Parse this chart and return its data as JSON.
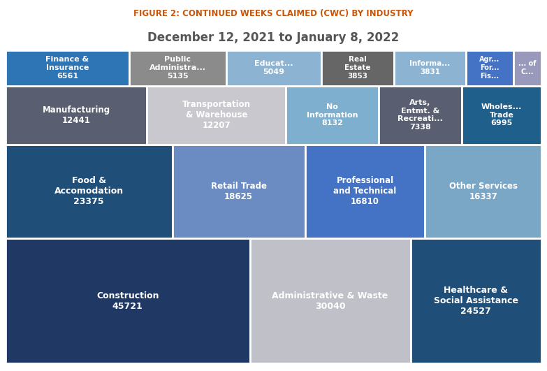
{
  "title_line1": "FIGURE 2: CONTINUED WEEKS CLAIMED (CWC) BY INDUSTRY",
  "title_line2": "December 12, 2021 to January 8, 2022",
  "title_line1_color": "#C8560A",
  "title_line2_color": "#555555",
  "labels": [
    "Construction\n45721",
    "Administrative & Waste\n30040",
    "Healthcare &\nSocial Assistance\n24527",
    "Food &\nAccomodation\n23375",
    "Retail Trade\n18625",
    "Professional\nand Technical\n16810",
    "Other Services\n16337",
    "Manufacturing\n12441",
    "Transportation\n& Warehouse\n12207",
    "No\nInformation\n8132",
    "Arts,\nEntmt. &\nRecreati...\n7338",
    "Wholes...\nTrade\n6995",
    "Finance &\nInsurance\n6561",
    "Public\nAdministra...\n5135",
    "Educat...\n5049",
    "Real\nEstate\n3853",
    "Informa...\n3831",
    "Agr...\nFor...\nFis...",
    "... of\nC..."
  ],
  "values": [
    45721,
    30040,
    24527,
    23375,
    18625,
    16810,
    16337,
    12441,
    12207,
    8132,
    7338,
    6995,
    6561,
    5135,
    5049,
    3853,
    3831,
    2500,
    1500
  ],
  "colors": [
    "#1F3864",
    "#C0C0C8",
    "#1F4E79",
    "#1F4E79",
    "#6B8CC2",
    "#4472C4",
    "#7BA7C7",
    "#595F70",
    "#C8C8CE",
    "#7FAFCF",
    "#595F70",
    "#1F5F8B",
    "#2E75B6",
    "#8B8B8B",
    "#8CB4D2",
    "#666666",
    "#8CB4D2",
    "#4472C4",
    "#9999BB"
  ],
  "figsize": [
    7.83,
    5.31
  ],
  "dpi": 100
}
